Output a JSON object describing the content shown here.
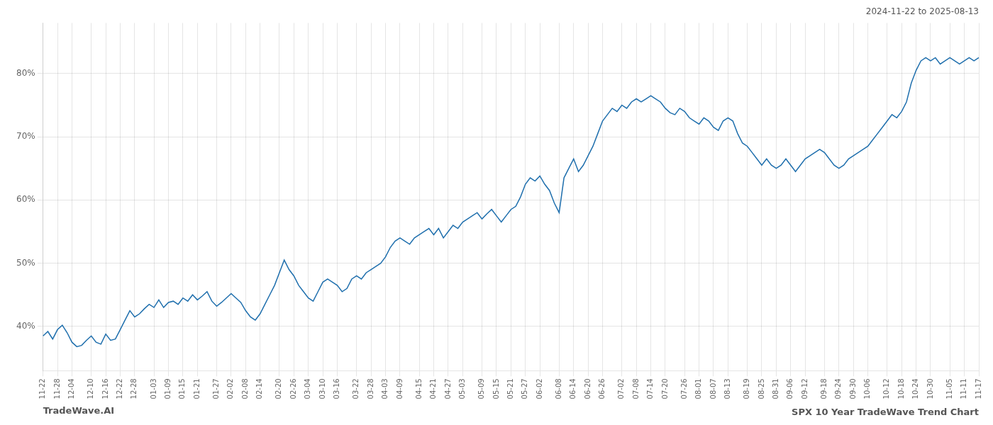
{
  "chart_data": {
    "type": "line",
    "title": "SPX 10 Year TradeWave Trend Chart",
    "subtitle": "2024-11-22 to 2025-08-13",
    "annotations": [
      "TradeWave.AI"
    ],
    "color": "#1f6fad",
    "grid": true,
    "ylim": [
      33,
      88
    ],
    "yticks": [
      {
        "value": 40,
        "label": "40%"
      },
      {
        "value": 50,
        "label": "50%"
      },
      {
        "value": 60,
        "label": "60%"
      },
      {
        "value": 70,
        "label": "70%"
      },
      {
        "value": 80,
        "label": "80%"
      }
    ],
    "categories": [
      "11-22",
      null,
      null,
      "11-28",
      null,
      null,
      "12-04",
      null,
      null,
      null,
      "12-10",
      null,
      null,
      "12-16",
      null,
      null,
      "12-22",
      null,
      null,
      "12-28",
      null,
      null,
      null,
      "01-03",
      null,
      null,
      "01-09",
      null,
      null,
      "01-15",
      null,
      null,
      "01-21",
      null,
      null,
      null,
      "01-27",
      null,
      null,
      "02-02",
      null,
      null,
      "02-08",
      null,
      null,
      "02-14",
      null,
      null,
      null,
      "02-20",
      null,
      null,
      "02-26",
      null,
      null,
      "03-04",
      null,
      null,
      "03-10",
      null,
      null,
      "03-16",
      null,
      null,
      null,
      "03-22",
      null,
      null,
      "03-28",
      null,
      null,
      "04-03",
      null,
      null,
      "04-09",
      null,
      null,
      null,
      "04-15",
      null,
      null,
      "04-21",
      null,
      null,
      "04-27",
      null,
      null,
      "05-03",
      null,
      null,
      null,
      "05-09",
      null,
      null,
      "05-15",
      null,
      null,
      "05-21",
      null,
      null,
      "05-27",
      null,
      null,
      "06-02",
      null,
      null,
      null,
      "06-08",
      null,
      null,
      "06-14",
      null,
      null,
      "06-20",
      null,
      null,
      "06-26",
      null,
      null,
      null,
      "07-02",
      null,
      null,
      "07-08",
      null,
      null,
      "07-14",
      null,
      null,
      "07-20",
      null,
      null,
      null,
      "07-26",
      null,
      null,
      "08-01",
      null,
      null,
      "08-07",
      null,
      null,
      "08-13",
      null,
      null,
      null,
      "08-19",
      null,
      null,
      "08-25",
      null,
      null,
      "08-31",
      null,
      null,
      "09-06",
      null,
      null,
      "09-12",
      null,
      null,
      null,
      "09-18",
      null,
      null,
      "09-24",
      null,
      null,
      "09-30",
      null,
      null,
      "10-06",
      null,
      null,
      null,
      "10-12",
      null,
      null,
      "10-18",
      null,
      null,
      "10-24",
      null,
      null,
      "10-30",
      null,
      null,
      null,
      "11-05",
      null,
      null,
      "11-11",
      null,
      null,
      "11-17"
    ],
    "values": [
      38.5,
      39.2,
      38.0,
      39.5,
      40.2,
      39.0,
      37.5,
      36.8,
      37.0,
      37.8,
      38.5,
      37.5,
      37.2,
      38.8,
      37.8,
      38.0,
      39.5,
      41.0,
      42.5,
      41.5,
      42.0,
      42.8,
      43.5,
      43.0,
      44.2,
      43.0,
      43.8,
      44.0,
      43.5,
      44.5,
      44.0,
      45.0,
      44.2,
      44.8,
      45.5,
      44.0,
      43.2,
      43.8,
      44.5,
      45.2,
      44.5,
      43.8,
      42.5,
      41.5,
      41.0,
      42.0,
      43.5,
      45.0,
      46.5,
      48.5,
      50.5,
      49.0,
      48.0,
      46.5,
      45.5,
      44.5,
      44.0,
      45.5,
      47.0,
      47.5,
      47.0,
      46.5,
      45.5,
      46.0,
      47.5,
      48.0,
      47.5,
      48.5,
      49.0,
      49.5,
      50.0,
      51.0,
      52.5,
      53.5,
      54.0,
      53.5,
      53.0,
      54.0,
      54.5,
      55.0,
      55.5,
      54.5,
      55.5,
      54.0,
      55.0,
      56.0,
      55.5,
      56.5,
      57.0,
      57.5,
      58.0,
      57.0,
      57.8,
      58.5,
      57.5,
      56.5,
      57.5,
      58.5,
      59.0,
      60.5,
      62.5,
      63.5,
      63.0,
      63.8,
      62.5,
      61.5,
      59.5,
      58.0,
      63.5,
      65.0,
      66.5,
      64.5,
      65.5,
      67.0,
      68.5,
      70.5,
      72.5,
      73.5,
      74.5,
      74.0,
      75.0,
      74.5,
      75.5,
      76.0,
      75.5,
      76.0,
      76.5,
      76.0,
      75.5,
      74.5,
      73.8,
      73.5,
      74.5,
      74.0,
      73.0,
      72.5,
      72.0,
      73.0,
      72.5,
      71.5,
      71.0,
      72.5,
      73.0,
      72.5,
      70.5,
      69.0,
      68.5,
      67.5,
      66.5,
      65.5,
      66.5,
      65.5,
      65.0,
      65.5,
      66.5,
      65.5,
      64.5,
      65.5,
      66.5,
      67.0,
      67.5,
      68.0,
      67.5,
      66.5,
      65.5,
      65.0,
      65.5,
      66.5,
      67.0,
      67.5,
      68.0,
      68.5,
      69.5,
      70.5,
      71.5,
      72.5,
      73.5,
      73.0,
      74.0,
      75.5,
      78.5,
      80.5,
      82.0,
      82.5,
      82.0,
      82.5,
      81.5,
      82.0,
      82.5,
      82.0,
      81.5,
      82.0,
      82.5,
      82.0,
      82.5
    ]
  }
}
